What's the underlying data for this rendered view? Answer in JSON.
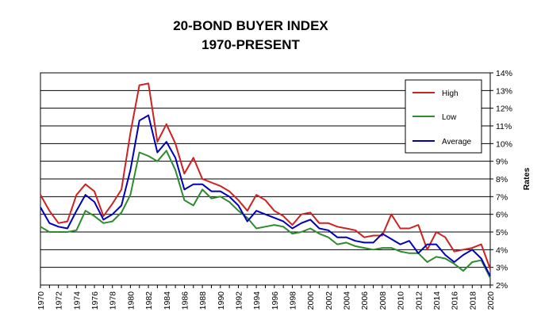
{
  "chart_data": {
    "type": "line",
    "title": "20-BOND BUYER INDEX",
    "subtitle": "1970-PRESENT",
    "xlabel": "",
    "ylabel": "Rates",
    "ylim": [
      2,
      14
    ],
    "xlim": [
      1970,
      2020
    ],
    "y_ticks": [
      "2%",
      "3%",
      "4%",
      "5%",
      "6%",
      "7%",
      "8%",
      "9%",
      "10%",
      "11%",
      "12%",
      "13%",
      "14%"
    ],
    "x_ticks": [
      "1970",
      "1972",
      "1974",
      "1976",
      "1978",
      "1980",
      "1982",
      "1984",
      "1986",
      "1988",
      "1990",
      "1992",
      "1994",
      "1996",
      "1998",
      "2000",
      "2002",
      "2004",
      "2006",
      "2008",
      "2010",
      "2012",
      "2014",
      "2016",
      "2018",
      "2020"
    ],
    "grid": "horizontal",
    "legend": "top-right",
    "x": [
      1970,
      1971,
      1972,
      1973,
      1974,
      1975,
      1976,
      1977,
      1978,
      1979,
      1980,
      1981,
      1982,
      1983,
      1984,
      1985,
      1986,
      1987,
      1988,
      1989,
      1990,
      1991,
      1992,
      1993,
      1994,
      1995,
      1996,
      1997,
      1998,
      1999,
      2000,
      2001,
      2002,
      2003,
      2004,
      2005,
      2006,
      2007,
      2008,
      2009,
      2010,
      2011,
      2012,
      2013,
      2014,
      2015,
      2016,
      2017,
      2018,
      2019,
      2020
    ],
    "series": [
      {
        "name": "High",
        "color": "#cc2222",
        "values": [
          7.1,
          6.2,
          5.5,
          5.6,
          7.1,
          7.7,
          7.3,
          5.9,
          6.6,
          7.4,
          10.6,
          13.3,
          13.4,
          10.1,
          11.1,
          10.0,
          8.3,
          9.2,
          8.0,
          7.8,
          7.6,
          7.3,
          6.8,
          6.2,
          7.1,
          6.8,
          6.2,
          5.9,
          5.4,
          6.0,
          6.1,
          5.5,
          5.5,
          5.3,
          5.2,
          5.1,
          4.7,
          4.8,
          4.8,
          6.0,
          5.2,
          5.2,
          5.4,
          4.0,
          5.0,
          4.7,
          3.9,
          4.0,
          4.1,
          4.3,
          2.9
        ]
      },
      {
        "name": "Low",
        "color": "#2e8b2e",
        "values": [
          5.3,
          5.0,
          5.0,
          5.0,
          5.1,
          6.2,
          5.9,
          5.5,
          5.6,
          6.1,
          7.1,
          9.5,
          9.3,
          9.0,
          9.6,
          8.5,
          6.8,
          6.5,
          7.4,
          6.9,
          7.0,
          6.7,
          6.2,
          5.8,
          5.2,
          5.3,
          5.4,
          5.3,
          4.9,
          5.0,
          5.2,
          4.9,
          4.7,
          4.3,
          4.4,
          4.2,
          4.1,
          4.0,
          4.1,
          4.1,
          3.9,
          3.8,
          3.8,
          3.3,
          3.6,
          3.5,
          3.2,
          2.8,
          3.3,
          3.4,
          2.4
        ]
      },
      {
        "name": "Average",
        "color": "#0000bb",
        "values": [
          6.4,
          5.5,
          5.3,
          5.2,
          6.2,
          7.1,
          6.7,
          5.7,
          6.0,
          6.5,
          8.5,
          11.3,
          11.6,
          9.5,
          10.1,
          9.2,
          7.4,
          7.7,
          7.7,
          7.3,
          7.3,
          7.0,
          6.5,
          5.6,
          6.2,
          6.0,
          5.8,
          5.6,
          5.2,
          5.5,
          5.7,
          5.2,
          5.1,
          4.7,
          4.7,
          4.5,
          4.4,
          4.4,
          4.9,
          4.6,
          4.3,
          4.5,
          3.8,
          4.3,
          4.3,
          3.7,
          3.3,
          3.7,
          4.0,
          3.5,
          2.5
        ]
      }
    ]
  }
}
